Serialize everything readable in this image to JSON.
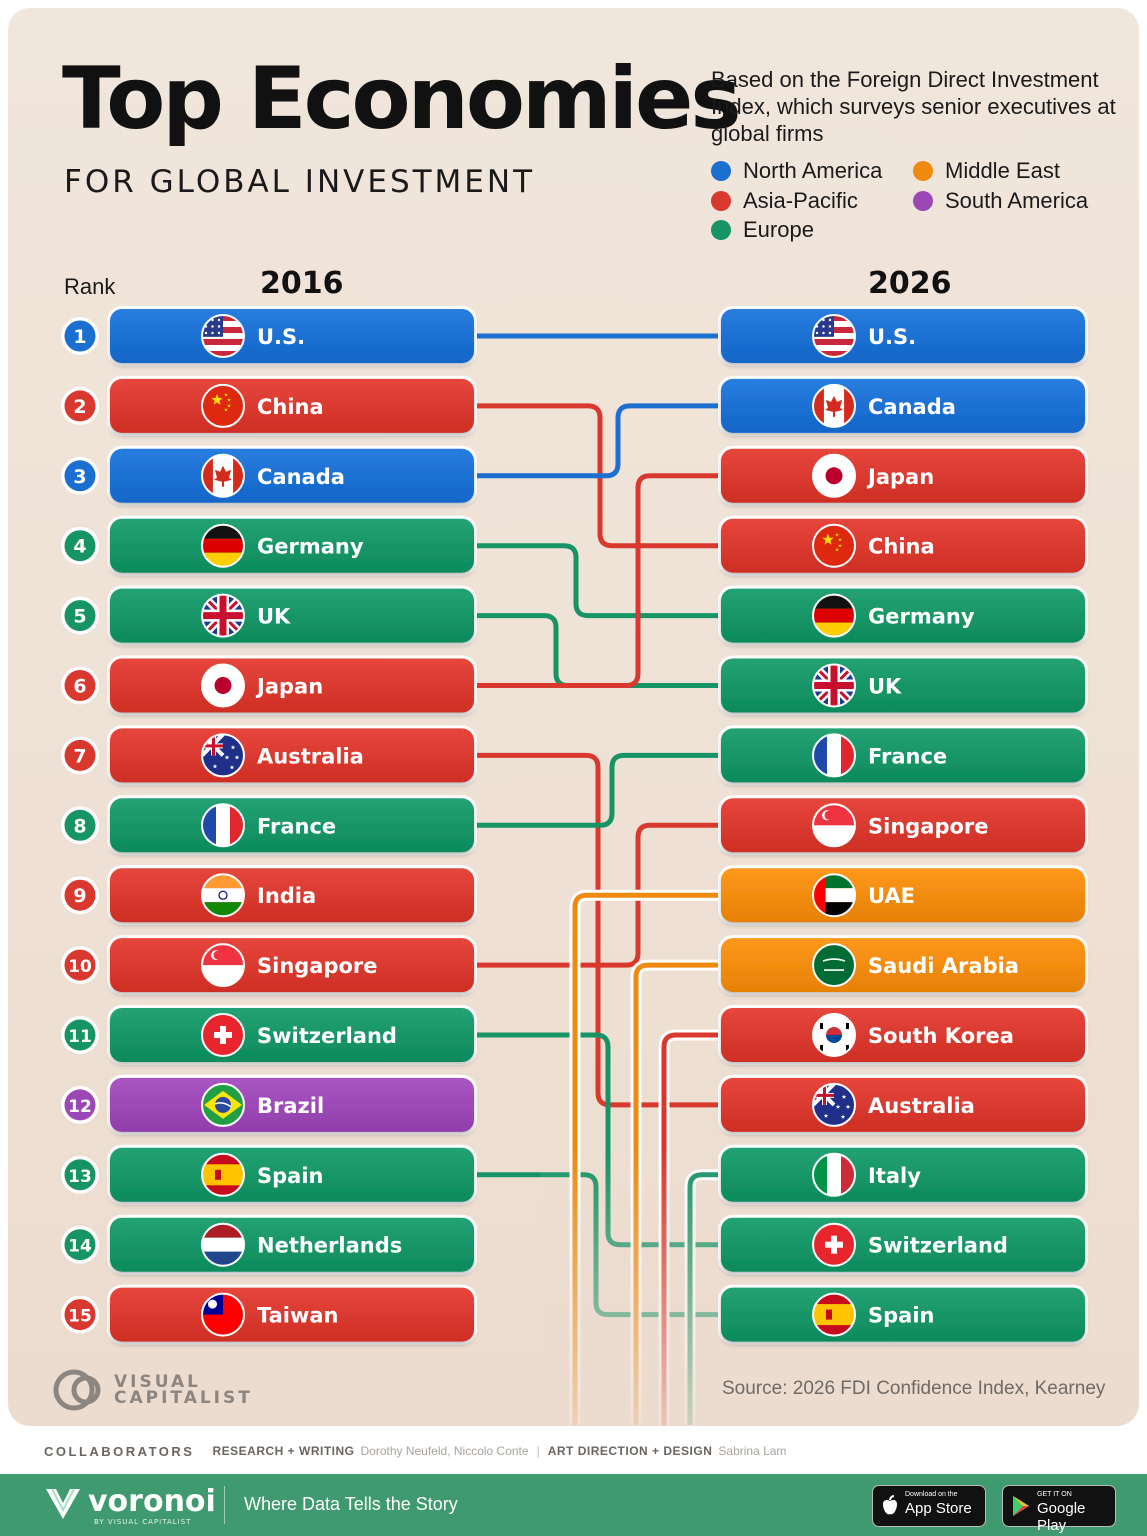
{
  "header": {
    "title": "Top Economies",
    "subtitle": "FOR GLOBAL INVESTMENT",
    "description": "Based on the Foreign Direct Investment Index, which surveys senior executives at global firms"
  },
  "legend": [
    {
      "label": "North America",
      "color": "#1b6fd1"
    },
    {
      "label": "Asia-Pacific",
      "color": "#d8382e"
    },
    {
      "label": "Europe",
      "color": "#169466"
    },
    {
      "label": "Middle East",
      "color": "#f08a0e"
    },
    {
      "label": "South America",
      "color": "#9b47b5"
    }
  ],
  "region_colors": {
    "North America": "#1b6fd1",
    "Asia-Pacific": "#d8382e",
    "Europe": "#169466",
    "Middle East": "#f08a0e",
    "South America": "#9b47b5"
  },
  "rank_label": "Rank",
  "chart_data": {
    "type": "table",
    "columns": [
      "2016",
      "2026"
    ],
    "ranks": [
      1,
      2,
      3,
      4,
      5,
      6,
      7,
      8,
      9,
      10,
      11,
      12,
      13,
      14,
      15
    ],
    "rankings_2016": [
      {
        "rank": 1,
        "country": "U.S.",
        "region": "North America",
        "flag": "us-flag-icon"
      },
      {
        "rank": 2,
        "country": "China",
        "region": "Asia-Pacific",
        "flag": "china-flag-icon"
      },
      {
        "rank": 3,
        "country": "Canada",
        "region": "North America",
        "flag": "canada-flag-icon"
      },
      {
        "rank": 4,
        "country": "Germany",
        "region": "Europe",
        "flag": "germany-flag-icon"
      },
      {
        "rank": 5,
        "country": "UK",
        "region": "Europe",
        "flag": "uk-flag-icon"
      },
      {
        "rank": 6,
        "country": "Japan",
        "region": "Asia-Pacific",
        "flag": "japan-flag-icon"
      },
      {
        "rank": 7,
        "country": "Australia",
        "region": "Asia-Pacific",
        "flag": "australia-flag-icon"
      },
      {
        "rank": 8,
        "country": "France",
        "region": "Europe",
        "flag": "france-flag-icon"
      },
      {
        "rank": 9,
        "country": "India",
        "region": "Asia-Pacific",
        "flag": "india-flag-icon"
      },
      {
        "rank": 10,
        "country": "Singapore",
        "region": "Asia-Pacific",
        "flag": "singapore-flag-icon"
      },
      {
        "rank": 11,
        "country": "Switzerland",
        "region": "Europe",
        "flag": "switzerland-flag-icon"
      },
      {
        "rank": 12,
        "country": "Brazil",
        "region": "South America",
        "flag": "brazil-flag-icon"
      },
      {
        "rank": 13,
        "country": "Spain",
        "region": "Europe",
        "flag": "spain-flag-icon"
      },
      {
        "rank": 14,
        "country": "Netherlands",
        "region": "Europe",
        "flag": "netherlands-flag-icon"
      },
      {
        "rank": 15,
        "country": "Taiwan",
        "region": "Asia-Pacific",
        "flag": "taiwan-flag-icon"
      }
    ],
    "rankings_2026": [
      {
        "rank": 1,
        "country": "U.S.",
        "region": "North America",
        "flag": "us-flag-icon"
      },
      {
        "rank": 2,
        "country": "Canada",
        "region": "North America",
        "flag": "canada-flag-icon"
      },
      {
        "rank": 3,
        "country": "Japan",
        "region": "Asia-Pacific",
        "flag": "japan-flag-icon"
      },
      {
        "rank": 4,
        "country": "China",
        "region": "Asia-Pacific",
        "flag": "china-flag-icon"
      },
      {
        "rank": 5,
        "country": "Germany",
        "region": "Europe",
        "flag": "germany-flag-icon"
      },
      {
        "rank": 6,
        "country": "UK",
        "region": "Europe",
        "flag": "uk-flag-icon"
      },
      {
        "rank": 7,
        "country": "France",
        "region": "Europe",
        "flag": "france-flag-icon"
      },
      {
        "rank": 8,
        "country": "Singapore",
        "region": "Asia-Pacific",
        "flag": "singapore-flag-icon"
      },
      {
        "rank": 9,
        "country": "UAE",
        "region": "Middle East",
        "flag": "uae-flag-icon"
      },
      {
        "rank": 10,
        "country": "Saudi Arabia",
        "region": "Middle East",
        "flag": "saudi-arabia-flag-icon"
      },
      {
        "rank": 11,
        "country": "South Korea",
        "region": "Asia-Pacific",
        "flag": "south-korea-flag-icon"
      },
      {
        "rank": 12,
        "country": "Australia",
        "region": "Asia-Pacific",
        "flag": "australia-flag-icon"
      },
      {
        "rank": 13,
        "country": "Italy",
        "region": "Europe",
        "flag": "italy-flag-icon"
      },
      {
        "rank": 14,
        "country": "Switzerland",
        "region": "Europe",
        "flag": "switzerland-flag-icon"
      },
      {
        "rank": 15,
        "country": "Spain",
        "region": "Europe",
        "flag": "spain-flag-icon"
      }
    ]
  },
  "source": "Source: 2026 FDI Confidence Index, Kearney",
  "brand": {
    "line1": "VISUAL",
    "line2": "CAPITALIST"
  },
  "collaborators": {
    "label": "COLLABORATORS",
    "research_label": "RESEARCH + WRITING",
    "research_names": "Dorothy Neufeld, Niccolo Conte",
    "design_label": "ART DIRECTION + DESIGN",
    "design_names": "Sabrina Lam"
  },
  "footer": {
    "logo": "voronoi",
    "logo_sub": "BY VISUAL CAPITALIST",
    "tagline": "Where Data Tells the Story",
    "app_store_small": "Download on the",
    "app_store_big": "App Store",
    "google_small": "GET IT ON",
    "google_big": "Google Play"
  }
}
